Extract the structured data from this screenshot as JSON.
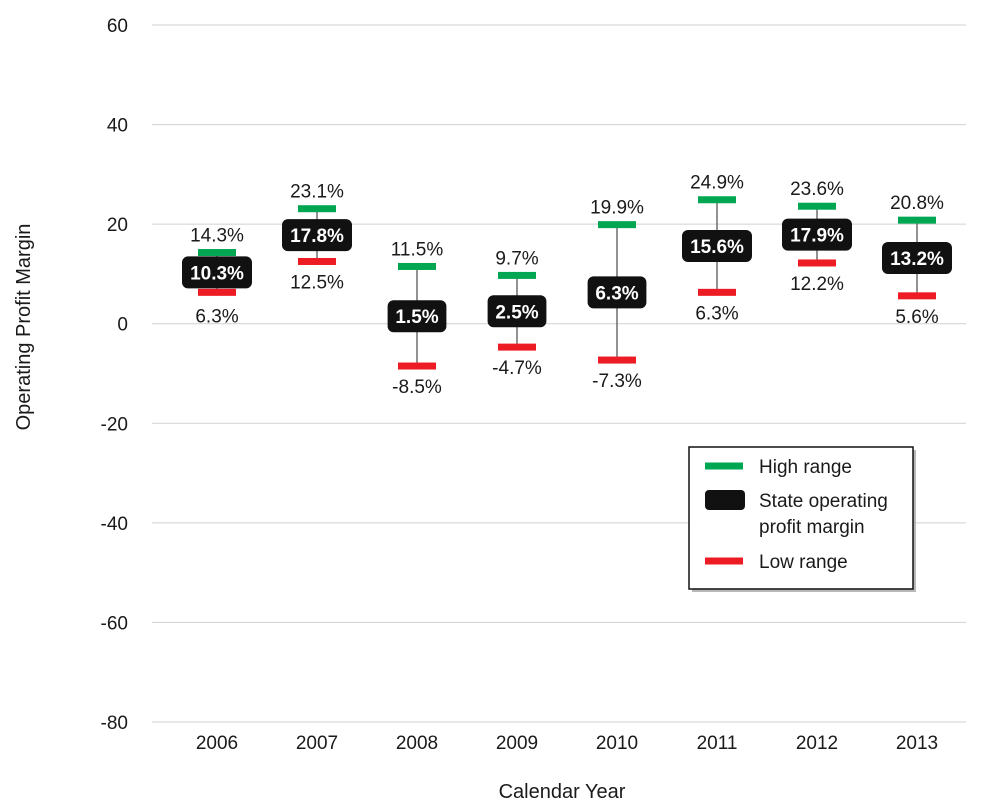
{
  "chart_data": {
    "type": "range",
    "xlabel": "Calendar Year",
    "ylabel": "Operating Profit Margin",
    "ylim": [
      -80,
      60
    ],
    "yticks": [
      60,
      40,
      20,
      0,
      -20,
      -40,
      -60,
      -80
    ],
    "grid": true,
    "categories": [
      "2006",
      "2007",
      "2008",
      "2009",
      "2010",
      "2011",
      "2012",
      "2013"
    ],
    "series": [
      {
        "name": "High range",
        "color": "#00a651",
        "values": [
          14.3,
          23.1,
          11.5,
          9.7,
          19.9,
          24.9,
          23.6,
          20.8
        ]
      },
      {
        "name": "State operating profit margin",
        "color": "#111111",
        "values": [
          10.3,
          17.8,
          1.5,
          2.5,
          6.3,
          15.6,
          17.9,
          13.2
        ]
      },
      {
        "name": "Low range",
        "color": "#ed1c24",
        "values": [
          6.3,
          12.5,
          -8.5,
          -4.7,
          -7.3,
          6.3,
          12.2,
          5.6
        ]
      }
    ],
    "high_labels": [
      "14.3%",
      "23.1%",
      "11.5%",
      "9.7%",
      "19.9%",
      "24.9%",
      "23.6%",
      "20.8%"
    ],
    "mid_labels": [
      "10.3%",
      "17.8%",
      "1.5%",
      "2.5%",
      "6.3%",
      "15.6%",
      "17.9%",
      "13.2%"
    ],
    "low_labels": [
      "6.3%",
      "12.5%",
      "-8.5%",
      "-4.7%",
      "-7.3%",
      "6.3%",
      "12.2%",
      "5.6%"
    ],
    "legend": {
      "placement": "bottom-right",
      "items": [
        {
          "label_lines": [
            "High range"
          ],
          "color": "#00a651",
          "marker": "bar"
        },
        {
          "label_lines": [
            "State operating",
            "profit margin"
          ],
          "color": "#111111",
          "marker": "box"
        },
        {
          "label_lines": [
            "Low range"
          ],
          "color": "#ed1c24",
          "marker": "bar"
        }
      ]
    }
  }
}
